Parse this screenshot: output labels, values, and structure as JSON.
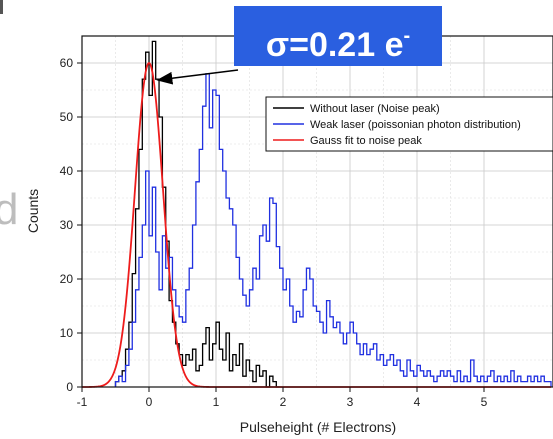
{
  "chart_data": {
    "type": "line",
    "xlabel": "Pulseheight (# Electrons)",
    "ylabel": "Counts",
    "xlim": [
      -1,
      6
    ],
    "ylim": [
      0,
      65
    ],
    "xticks": [
      -1,
      0,
      1,
      2,
      3,
      4,
      5
    ],
    "yticks": [
      0,
      10,
      20,
      30,
      40,
      50,
      60
    ],
    "grid": true,
    "legend_position": "top-right",
    "annotation": {
      "text": "σ=0.21 e",
      "superscript": "-"
    },
    "series": [
      {
        "name": "Without laser (Noise peak)",
        "color": "#000000",
        "style": "step",
        "x": [
          -0.5,
          -0.45,
          -0.4,
          -0.35,
          -0.3,
          -0.25,
          -0.2,
          -0.15,
          -0.1,
          -0.05,
          0.0,
          0.05,
          0.1,
          0.15,
          0.2,
          0.25,
          0.3,
          0.35,
          0.4,
          0.45,
          0.5,
          0.55,
          0.6,
          0.65,
          0.7,
          0.75,
          0.8,
          0.85,
          0.9,
          0.95,
          1.0,
          1.05,
          1.1,
          1.15,
          1.2,
          1.25,
          1.3,
          1.35,
          1.4,
          1.45,
          1.5,
          1.55,
          1.6,
          1.65,
          1.7,
          1.75,
          1.8,
          1.85,
          1.9
        ],
        "values": [
          1,
          2,
          3,
          7,
          12,
          21,
          33,
          44,
          57,
          62,
          54,
          64,
          57,
          50,
          37,
          27,
          16,
          12,
          8,
          6,
          4,
          6,
          5,
          7,
          3,
          4,
          8,
          11,
          5,
          8,
          12,
          7,
          5,
          10,
          3,
          6,
          4,
          8,
          2,
          5,
          3,
          1,
          4,
          2,
          3,
          0,
          2,
          1,
          0
        ]
      },
      {
        "name": "Weak laser (poissonian photon distribution)",
        "color": "#2030e0",
        "style": "step",
        "x": [
          -0.5,
          -0.45,
          -0.4,
          -0.35,
          -0.3,
          -0.25,
          -0.2,
          -0.15,
          -0.1,
          -0.05,
          0.0,
          0.05,
          0.1,
          0.15,
          0.2,
          0.25,
          0.3,
          0.35,
          0.4,
          0.45,
          0.5,
          0.55,
          0.6,
          0.65,
          0.7,
          0.75,
          0.8,
          0.85,
          0.9,
          0.95,
          1.0,
          1.05,
          1.1,
          1.15,
          1.2,
          1.25,
          1.3,
          1.35,
          1.4,
          1.45,
          1.5,
          1.55,
          1.6,
          1.65,
          1.7,
          1.75,
          1.8,
          1.85,
          1.9,
          1.95,
          2.0,
          2.05,
          2.1,
          2.15,
          2.2,
          2.25,
          2.3,
          2.35,
          2.4,
          2.45,
          2.5,
          2.55,
          2.6,
          2.65,
          2.7,
          2.75,
          2.8,
          2.85,
          2.9,
          2.95,
          3.0,
          3.05,
          3.1,
          3.15,
          3.2,
          3.25,
          3.3,
          3.35,
          3.4,
          3.45,
          3.5,
          3.55,
          3.6,
          3.65,
          3.7,
          3.75,
          3.8,
          3.85,
          3.9,
          3.95,
          4.0,
          4.05,
          4.1,
          4.15,
          4.2,
          4.25,
          4.3,
          4.35,
          4.4,
          4.45,
          4.5,
          4.55,
          4.6,
          4.65,
          4.7,
          4.75,
          4.8,
          4.85,
          4.9,
          4.95,
          5.0,
          5.05,
          5.1,
          5.15,
          5.2,
          5.25,
          5.3,
          5.35,
          5.4,
          5.45,
          5.5,
          5.55,
          5.6,
          5.65,
          5.7,
          5.75,
          5.8,
          5.85,
          5.9,
          5.95
        ],
        "values": [
          1,
          2,
          1,
          4,
          7,
          12,
          18,
          24,
          30,
          40,
          28,
          37,
          25,
          18,
          28,
          22,
          24,
          18,
          15,
          13,
          12,
          18,
          22,
          30,
          38,
          44,
          52,
          58,
          48,
          55,
          54,
          44,
          40,
          35,
          33,
          30,
          24,
          20,
          17,
          15,
          18,
          22,
          20,
          28,
          30,
          27,
          35,
          34,
          26,
          22,
          18,
          20,
          15,
          12,
          14,
          13,
          18,
          22,
          20,
          15,
          14,
          12,
          10,
          16,
          13,
          11,
          12,
          10,
          8,
          10,
          12,
          10,
          8,
          6,
          8,
          6,
          7,
          8,
          5,
          6,
          4,
          5,
          6,
          4,
          5,
          3,
          2,
          5,
          3,
          2,
          4,
          3,
          2,
          3,
          2,
          1,
          2,
          3,
          2,
          3,
          2,
          1,
          3,
          1,
          2,
          1,
          5,
          2,
          1,
          2,
          1,
          2,
          3,
          1,
          2,
          1,
          2,
          1,
          3,
          1,
          2,
          1,
          1,
          2,
          1,
          2,
          1,
          2,
          1,
          1
        ]
      },
      {
        "name": "Gauss fit to noise peak",
        "color": "#ee1c1c",
        "style": "curve",
        "amplitude": 60,
        "mean": 0.0,
        "sigma": 0.21
      }
    ]
  }
}
